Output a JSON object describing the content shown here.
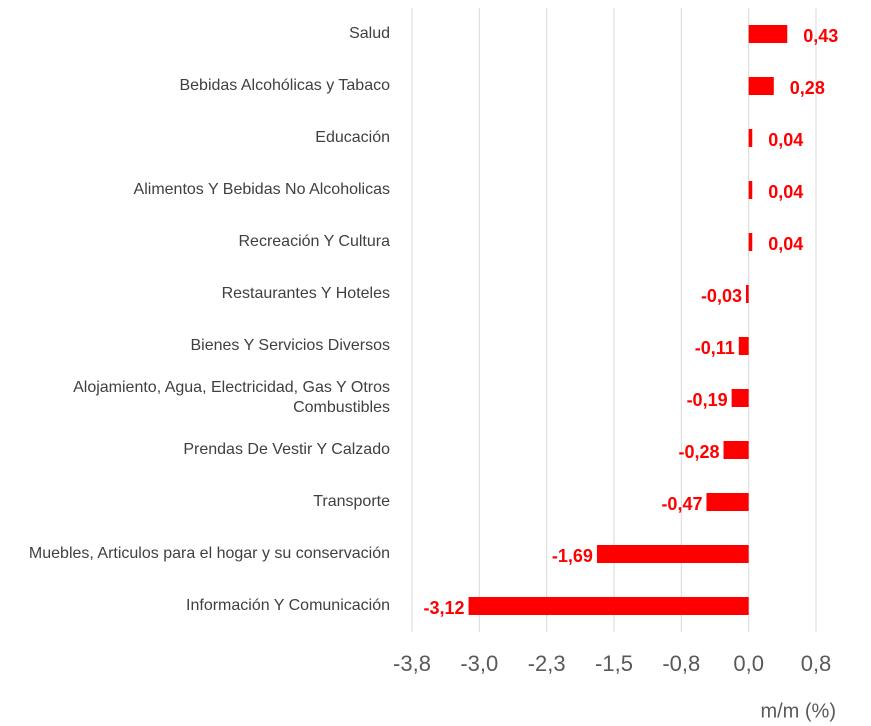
{
  "chart_data": {
    "type": "bar",
    "orientation": "horizontal",
    "categories": [
      "Salud",
      "Bebidas Alcohólicas y Tabaco ",
      "Educación",
      "Alimentos Y Bebidas No Alcoholicas",
      "Recreación Y Cultura",
      "Restaurantes Y Hoteles",
      "Bienes Y Servicios Diversos",
      "Alojamiento, Agua, Electricidad, Gas Y Otros Combustibles",
      "Prendas De Vestir Y Calzado",
      "Transporte",
      "Muebles, Articulos para el hogar y su conservación",
      "Información Y Comunicación"
    ],
    "values": [
      0.43,
      0.28,
      0.04,
      0.04,
      0.04,
      -0.03,
      -0.11,
      -0.19,
      -0.28,
      -0.47,
      -1.69,
      -3.12
    ],
    "value_labels": [
      "0,43",
      "0,28",
      "0,04",
      "0,04",
      "0,04",
      "-0,03",
      "-0,11",
      "-0,19",
      "-0,28",
      "-0,47",
      "-1,69",
      "-3,12"
    ],
    "color": "#ff0000",
    "xlim": [
      -3.75,
      0.75
    ],
    "xticks": [
      {
        "value": -3.75,
        "label": "-3,8"
      },
      {
        "value": -3.0,
        "label": "-3,0"
      },
      {
        "value": -2.25,
        "label": "-2,3"
      },
      {
        "value": -1.5,
        "label": "-1,5"
      },
      {
        "value": -0.75,
        "label": "-0,8"
      },
      {
        "value": 0,
        "label": "0,0"
      },
      {
        "value": 0.75,
        "label": "0,8"
      }
    ],
    "grid": true,
    "x_label": "m/m (%)"
  }
}
